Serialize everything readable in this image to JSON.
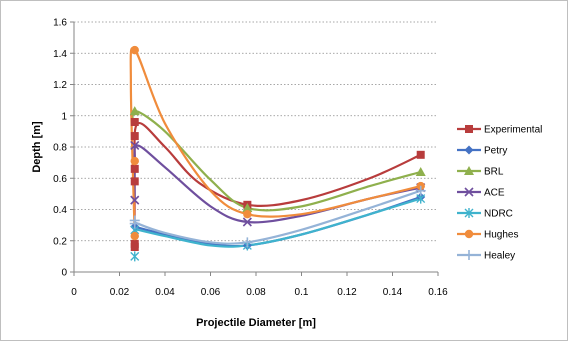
{
  "chart_data": {
    "type": "scatter",
    "title": "",
    "xlabel": "Projectile Diameter [m]",
    "ylabel": "Depth [m]",
    "xlim": [
      0,
      0.16
    ],
    "ylim": [
      0,
      1.6
    ],
    "xticks": [
      "0",
      "0.02",
      "0.04",
      "0.06",
      "0.08",
      "0.1",
      "0.12",
      "0.14",
      "0.16"
    ],
    "yticks": [
      "0",
      "0.2",
      "0.4",
      "0.6",
      "0.8",
      "1",
      "1.2",
      "1.4",
      "1.6"
    ],
    "grid": "horizontal",
    "legend": "right",
    "series": [
      {
        "name": "Experimental",
        "color": "#b83c3c",
        "marker": "square",
        "x": [
          0.0267,
          0.0267,
          0.0267,
          0.0267,
          0.0267,
          0.0267,
          0.0762,
          0.1524
        ],
        "y": [
          0.16,
          0.58,
          0.66,
          0.87,
          0.96,
          0.18,
          0.43,
          0.75
        ]
      },
      {
        "name": "Petry",
        "color": "#4472c4",
        "marker": "diamond",
        "x": [
          0.0267,
          0.0762,
          0.1524
        ],
        "y": [
          0.29,
          0.17,
          0.48
        ]
      },
      {
        "name": "BRL",
        "color": "#8fb04d",
        "marker": "triangle",
        "x": [
          0.0267,
          0.0762,
          0.1524
        ],
        "y": [
          1.03,
          0.41,
          0.64
        ]
      },
      {
        "name": "ACE",
        "color": "#6f4f9e",
        "marker": "x",
        "x": [
          0.0267,
          0.0267,
          0.0762,
          0.1524
        ],
        "y": [
          0.81,
          0.46,
          0.32,
          0.54
        ]
      },
      {
        "name": "NDRC",
        "color": "#3fb3cd",
        "marker": "star",
        "x": [
          0.0267,
          0.0267,
          0.0762,
          0.1524
        ],
        "y": [
          0.1,
          0.27,
          0.17,
          0.47
        ]
      },
      {
        "name": "Hughes",
        "color": "#f08c3c",
        "marker": "circle",
        "x": [
          0.0267,
          0.0267,
          0.0267,
          0.0762,
          0.1524
        ],
        "y": [
          1.42,
          0.71,
          0.23,
          0.37,
          0.55
        ]
      },
      {
        "name": "Healey",
        "color": "#95b3d7",
        "marker": "plus",
        "x": [
          0.0267,
          0.0267,
          0.0762,
          0.1524
        ],
        "y": [
          0.33,
          0.31,
          0.19,
          0.52
        ]
      }
    ],
    "curves": [
      {
        "series": "Experimental",
        "x": [
          0.0267,
          0.0267,
          0.028,
          0.04,
          0.055,
          0.0762,
          0.1,
          0.13,
          0.1524
        ],
        "y": [
          0.16,
          0.66,
          0.95,
          0.8,
          0.57,
          0.43,
          0.46,
          0.6,
          0.75
        ]
      },
      {
        "series": "Petry",
        "x": [
          0.0267,
          0.04,
          0.06,
          0.0762,
          0.1,
          0.13,
          0.1524
        ],
        "y": [
          0.29,
          0.24,
          0.18,
          0.17,
          0.24,
          0.37,
          0.48
        ]
      },
      {
        "series": "BRL",
        "x": [
          0.0258,
          0.0272,
          0.04,
          0.06,
          0.0762,
          0.1,
          0.13,
          0.1524
        ],
        "y": [
          0.95,
          1.03,
          0.9,
          0.59,
          0.41,
          0.42,
          0.55,
          0.64
        ]
      },
      {
        "series": "ACE",
        "x": [
          0.0267,
          0.0267,
          0.028,
          0.04,
          0.06,
          0.0762,
          0.1,
          0.13,
          0.1524
        ],
        "y": [
          0.46,
          0.7,
          0.81,
          0.67,
          0.42,
          0.32,
          0.36,
          0.47,
          0.54
        ]
      },
      {
        "series": "NDRC",
        "x": [
          0.0267,
          0.028,
          0.04,
          0.06,
          0.0762,
          0.1,
          0.13,
          0.1524
        ],
        "y": [
          0.27,
          0.27,
          0.23,
          0.17,
          0.17,
          0.24,
          0.37,
          0.47
        ]
      },
      {
        "series": "Hughes",
        "x": [
          0.0267,
          0.025,
          0.0268,
          0.04,
          0.06,
          0.0762,
          0.1,
          0.13,
          0.1524
        ],
        "y": [
          0.23,
          1.2,
          1.42,
          0.95,
          0.52,
          0.37,
          0.37,
          0.47,
          0.55
        ]
      },
      {
        "series": "Healey",
        "x": [
          0.0267,
          0.028,
          0.04,
          0.06,
          0.0762,
          0.1,
          0.13,
          0.1524
        ],
        "y": [
          0.33,
          0.31,
          0.25,
          0.19,
          0.19,
          0.27,
          0.41,
          0.52
        ]
      }
    ]
  }
}
